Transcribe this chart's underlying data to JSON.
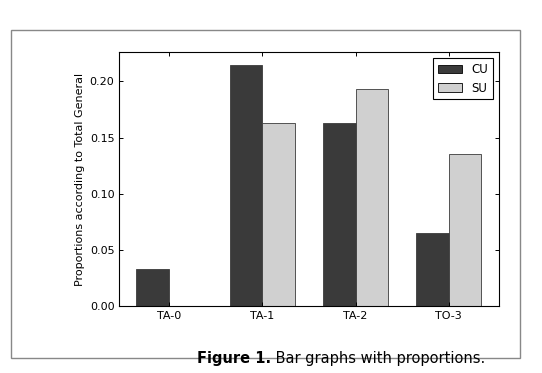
{
  "categories": [
    "TA-0",
    "TA-1",
    "TA-2",
    "TO-3"
  ],
  "cu_values": [
    0.033,
    0.215,
    0.163,
    0.065
  ],
  "su_values": [
    0.0,
    0.163,
    0.193,
    0.135
  ],
  "cu_color": "#3a3a3a",
  "su_color": "#d0d0d0",
  "ylabel": "Proportions according to Total General",
  "ylim": [
    0.0,
    0.226
  ],
  "yticks": [
    0.0,
    0.05,
    0.1,
    0.15,
    0.2
  ],
  "ytick_labels": [
    "0.00",
    "0.05",
    "0.10",
    "0.15",
    "0.20"
  ],
  "legend_labels": [
    "CU",
    "SU"
  ],
  "caption_bold": "Figure 1.",
  "caption_normal": " Bar graphs with proportions.",
  "bar_width": 0.35,
  "edge_color": "#3a3a3a",
  "plot_bg": "#ffffff",
  "fig_bg": "#ffffff",
  "outer_rect_color": "#aaaaaa",
  "font_size_ticks": 8,
  "font_size_ylabel": 8,
  "font_size_legend": 8.5,
  "font_size_caption": 10.5
}
